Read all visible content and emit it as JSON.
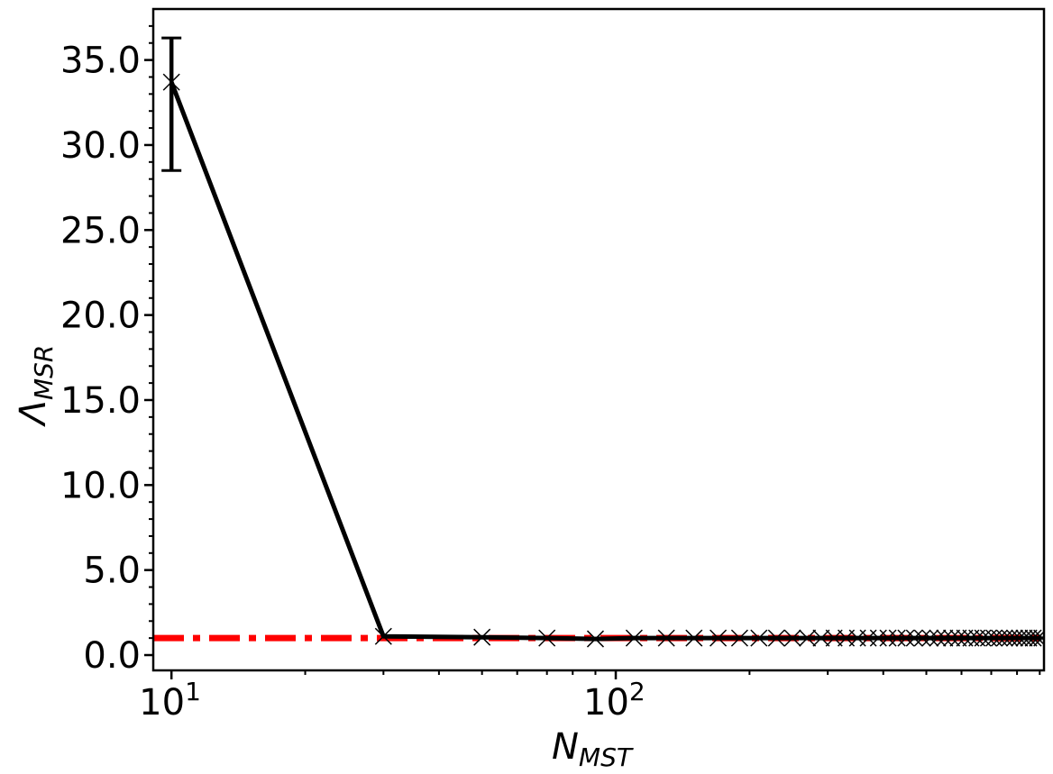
{
  "chart_data": {
    "type": "line",
    "title": "",
    "xlabel": {
      "main": "N",
      "sub": "MST"
    },
    "ylabel": {
      "main": "Λ",
      "sub": "MSR"
    },
    "x_scale": "log",
    "xlim": [
      9.1,
      920
    ],
    "ylim": [
      -0.9,
      38.0
    ],
    "grid": false,
    "legend": "none",
    "x_ticks": [
      {
        "value": 10,
        "base": "10",
        "exp": "1"
      },
      {
        "value": 100,
        "base": "10",
        "exp": "2"
      }
    ],
    "y_ticks": [
      {
        "value": 0,
        "label": "0.0"
      },
      {
        "value": 5,
        "label": "5.0"
      },
      {
        "value": 10,
        "label": "10.0"
      },
      {
        "value": 15,
        "label": "15.0"
      },
      {
        "value": 20,
        "label": "20.0"
      },
      {
        "value": 25,
        "label": "25.0"
      },
      {
        "value": 30,
        "label": "30.0"
      },
      {
        "value": 35,
        "label": "35.0"
      }
    ],
    "series": [
      {
        "color": "#000000",
        "marker": "x",
        "x": [
          10,
          30,
          50,
          70,
          90,
          110,
          130,
          150,
          170,
          190,
          210,
          230,
          250,
          270,
          290,
          310,
          330,
          350,
          370,
          390,
          410,
          430,
          450,
          470,
          490,
          510,
          530,
          550,
          570,
          590,
          610,
          630,
          650,
          670,
          690,
          710,
          730,
          750,
          770,
          790,
          810,
          830,
          850,
          870,
          890,
          910
        ],
        "y": [
          33.7,
          1.1,
          1.05,
          1.0,
          0.95,
          1.0,
          1.0,
          1.0,
          1.0,
          1.0,
          1.0,
          1.0,
          1.0,
          1.0,
          1.0,
          1.0,
          1.0,
          1.0,
          1.0,
          1.0,
          1.0,
          1.0,
          1.0,
          1.0,
          1.0,
          1.0,
          1.0,
          1.0,
          1.0,
          1.0,
          1.0,
          1.0,
          1.0,
          1.0,
          1.0,
          1.0,
          1.0,
          1.0,
          1.0,
          1.0,
          1.0,
          1.0,
          1.0,
          1.0,
          1.0,
          1.0
        ],
        "error_bars": [
          {
            "x": 10,
            "lower": 28.5,
            "upper": 36.3
          }
        ]
      }
    ],
    "reference_line": {
      "y": 1.0,
      "color": "#ff0000",
      "style": "dash-dot"
    }
  }
}
